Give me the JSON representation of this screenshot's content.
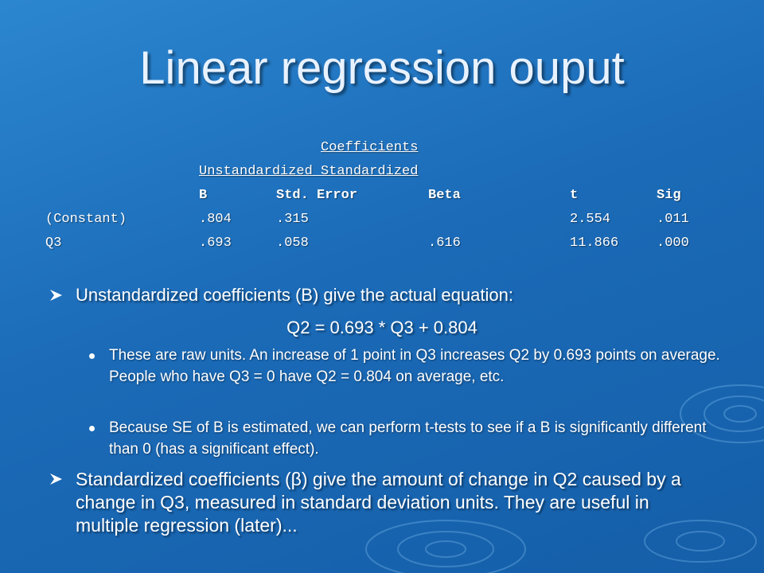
{
  "title": "Linear regression ouput",
  "table": {
    "caption": "Coefficients",
    "group_header": "Unstandardized Standardized",
    "headers": [
      "B",
      "Std. Error",
      "Beta",
      "t",
      "Sig"
    ],
    "rows": [
      {
        "label": "(Constant)",
        "b": ".804",
        "se": ".315",
        "t": "2.554",
        "sig": ".011"
      },
      {
        "label": "Q3",
        "b": ".693",
        "se": ".058",
        "beta": ".616",
        "t": "11.866",
        "sig": ".000"
      }
    ]
  },
  "bullets": [
    {
      "text": "Unstandardized coefficients (B) give the actual equation:",
      "equation": "Q2 = 0.693 * Q3 + 0.804",
      "subitems": [
        "These are raw units. An increase of 1 point in Q3 increases Q2 by 0.693 points on average. People who have Q3 = 0 have Q2 = 0.804 on average, etc.",
        "Because SE of B is estimated, we can perform t-tests to see if a B is significantly different than 0 (has a significant effect)."
      ]
    },
    {
      "text": "Standardized coefficients (β) give the amount of change in Q2 caused by a change in Q3, measured in standard deviation units. They are useful in multiple regression (later)..."
    }
  ]
}
